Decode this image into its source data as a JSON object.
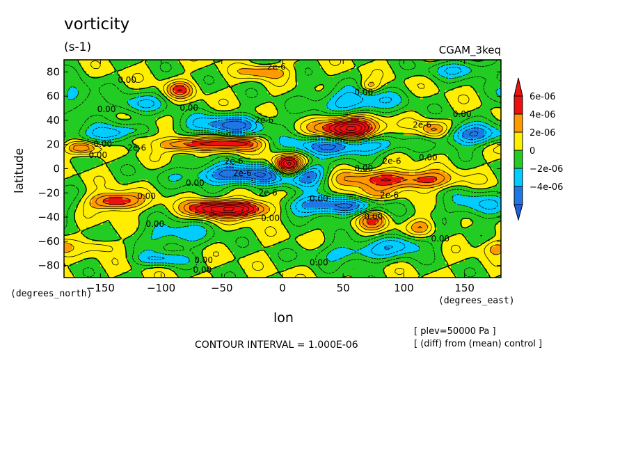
{
  "header": {
    "title": "vorticity",
    "subtitle": "(s-1)",
    "dataset": "CGAM_3keq"
  },
  "footer": {
    "contour_interval": "CONTOUR INTERVAL = 1.000E-06",
    "plev_note": "[ plev=50000 Pa ]",
    "diff_note": "[ (diff) from (mean) control ]"
  },
  "chart_data": {
    "type": "heatmap",
    "title": "vorticity",
    "subtitle": "(s-1)",
    "xlabel": "lon",
    "ylabel": "latitude",
    "x_units": "(degrees_east)",
    "y_units": "(degrees_north)",
    "xlim": [
      -180,
      180
    ],
    "ylim": [
      -90,
      90
    ],
    "xticks": [
      -150,
      -100,
      -50,
      0,
      50,
      100,
      150
    ],
    "yticks": [
      -80,
      -60,
      -40,
      -20,
      0,
      20,
      40,
      60,
      80
    ],
    "grid": false,
    "colorbar": {
      "placement": "right",
      "levels": [
        -6e-06,
        -4e-06,
        -2e-06,
        0,
        2e-06,
        4e-06,
        6e-06
      ],
      "tick_labels": [
        "-4e-06",
        "-2e-06",
        "0",
        "2e-06",
        "4e-06",
        "6e-06"
      ],
      "tick_values": [
        -4e-06,
        -2e-06,
        0,
        2e-06,
        4e-06,
        6e-06
      ],
      "colors": [
        "#1f77e6",
        "#00ccff",
        "#22cc22",
        "#ffee00",
        "#ff9900",
        "#ee1111"
      ],
      "below_color": "#1f5fe0",
      "above_color": "#ee1111"
    },
    "contour_interval": 1e-06,
    "background_value": 0,
    "features": [
      {
        "lon": 55,
        "lat": 33,
        "amp": 9e-06,
        "slon": 18,
        "slat": 7
      },
      {
        "lon": 5,
        "lat": 2,
        "amp": 9e-06,
        "slon": 9,
        "slat": 6
      },
      {
        "lon": -30,
        "lat": -33,
        "amp": 7e-06,
        "slon": 16,
        "slat": 5
      },
      {
        "lon": -60,
        "lat": -33,
        "amp": 6e-06,
        "slon": 14,
        "slat": 5
      },
      {
        "lon": -138,
        "lat": -27,
        "amp": 6e-06,
        "slon": 14,
        "slat": 5
      },
      {
        "lon": -40,
        "lat": 21,
        "amp": 6e-06,
        "slon": 16,
        "slat": 4
      },
      {
        "lon": -80,
        "lat": 20,
        "amp": 5e-06,
        "slon": 15,
        "slat": 4
      },
      {
        "lon": -165,
        "lat": 17,
        "amp": 5e-06,
        "slon": 9,
        "slat": 4
      },
      {
        "lon": 80,
        "lat": -8,
        "amp": 4e-06,
        "slon": 30,
        "slat": 5
      },
      {
        "lon": 65,
        "lat": -22,
        "amp": 3e-06,
        "slon": 18,
        "slat": 5
      },
      {
        "lon": 118,
        "lat": -10,
        "amp": 3e-06,
        "slon": 20,
        "slat": 5
      },
      {
        "lon": 75,
        "lat": -42,
        "amp": 4e-06,
        "slon": 9,
        "slat": 6
      },
      {
        "lon": 115,
        "lat": -48,
        "amp": 3e-06,
        "slon": 8,
        "slat": 5
      },
      {
        "lon": -85,
        "lat": 65,
        "amp": 4e-06,
        "slon": 8,
        "slat": 5
      },
      {
        "lon": -15,
        "lat": 80,
        "amp": 3e-06,
        "slon": 14,
        "slat": 4
      },
      {
        "lon": 125,
        "lat": 32,
        "amp": 4e-06,
        "slon": 9,
        "slat": 5
      },
      {
        "lon": 72,
        "lat": 68,
        "amp": 3e-06,
        "slon": 6,
        "slat": 4
      },
      {
        "lon": -150,
        "lat": -64,
        "amp": 2e-06,
        "slon": 10,
        "slat": 4
      },
      {
        "lon": 175,
        "lat": -65,
        "amp": 2.5e-06,
        "slon": 8,
        "slat": 5
      },
      {
        "lon": -120,
        "lat": 25,
        "amp": 3e-06,
        "slon": 10,
        "slat": 4
      },
      {
        "lon": 50,
        "lat": 20,
        "amp": -6e-06,
        "slon": 30,
        "slat": 6
      },
      {
        "lon": -45,
        "lat": 36,
        "amp": -5e-06,
        "slon": 25,
        "slat": 6
      },
      {
        "lon": -140,
        "lat": 28,
        "amp": -4e-06,
        "slon": 18,
        "slat": 6
      },
      {
        "lon": 155,
        "lat": 28,
        "amp": -5e-06,
        "slon": 18,
        "slat": 6
      },
      {
        "lon": -30,
        "lat": -5,
        "amp": -6e-06,
        "slon": 35,
        "slat": 6
      },
      {
        "lon": 40,
        "lat": -30,
        "amp": -6e-06,
        "slon": 28,
        "slat": 6
      },
      {
        "lon": 20,
        "lat": -5,
        "amp": -4e-06,
        "slon": 12,
        "slat": 7
      },
      {
        "lon": 60,
        "lat": 55,
        "amp": -4e-06,
        "slon": 25,
        "slat": 8
      },
      {
        "lon": -120,
        "lat": 53,
        "amp": -3e-06,
        "slon": 15,
        "slat": 6
      },
      {
        "lon": -90,
        "lat": -55,
        "amp": -3e-06,
        "slon": 20,
        "slat": 8
      },
      {
        "lon": 60,
        "lat": -70,
        "amp": -3e-06,
        "slon": 25,
        "slat": 6
      },
      {
        "lon": 100,
        "lat": -62,
        "amp": -3e-06,
        "slon": 15,
        "slat": 6
      },
      {
        "lon": 160,
        "lat": -30,
        "amp": -3e-06,
        "slon": 18,
        "slat": 8
      },
      {
        "lon": -170,
        "lat": 60,
        "amp": -3e-06,
        "slon": 10,
        "slat": 8
      },
      {
        "lon": 150,
        "lat": 82,
        "amp": -3e-06,
        "slon": 20,
        "slat": 5
      },
      {
        "lon": -100,
        "lat": -75,
        "amp": -3e-06,
        "slon": 15,
        "slat": 4
      }
    ],
    "contour_labels": [
      {
        "text": "2e-6",
        "lon": -5,
        "lat": 84
      },
      {
        "text": "0.00",
        "lon": -128,
        "lat": 73
      },
      {
        "text": "0.00",
        "lon": 67,
        "lat": 63
      },
      {
        "text": "0.00",
        "lon": -145,
        "lat": 49
      },
      {
        "text": "0.00",
        "lon": -77,
        "lat": 50
      },
      {
        "text": "0.00",
        "lon": 148,
        "lat": 45
      },
      {
        "text": "2e-6",
        "lon": -15,
        "lat": 40
      },
      {
        "text": "2e-6",
        "lon": 115,
        "lat": 36
      },
      {
        "text": "0.00",
        "lon": -148,
        "lat": 20
      },
      {
        "text": "2e-6",
        "lon": -120,
        "lat": 17
      },
      {
        "text": "0.00",
        "lon": -152,
        "lat": 11
      },
      {
        "text": "0.00",
        "lon": 120,
        "lat": 9
      },
      {
        "text": "2e-6",
        "lon": -40,
        "lat": 6
      },
      {
        "text": "2e-6",
        "lon": 90,
        "lat": 6
      },
      {
        "text": "0.00",
        "lon": 67,
        "lat": 0
      },
      {
        "text": "2e-6",
        "lon": -33,
        "lat": -4
      },
      {
        "text": "0.00",
        "lon": -72,
        "lat": -12
      },
      {
        "text": "2e-6",
        "lon": -12,
        "lat": -20
      },
      {
        "text": "0.00",
        "lon": -112,
        "lat": -23
      },
      {
        "text": "0.00",
        "lon": 30,
        "lat": -25
      },
      {
        "text": "2e-6",
        "lon": 88,
        "lat": -22
      },
      {
        "text": "0.00",
        "lon": -10,
        "lat": -41
      },
      {
        "text": "0.00",
        "lon": 75,
        "lat": -40
      },
      {
        "text": "0.00",
        "lon": -105,
        "lat": -46
      },
      {
        "text": "0.00",
        "lon": 130,
        "lat": -58
      },
      {
        "text": "0.00",
        "lon": -65,
        "lat": -76
      },
      {
        "text": "0.00",
        "lon": -66,
        "lat": -84
      },
      {
        "text": "0.00",
        "lon": 30,
        "lat": -78
      }
    ]
  }
}
